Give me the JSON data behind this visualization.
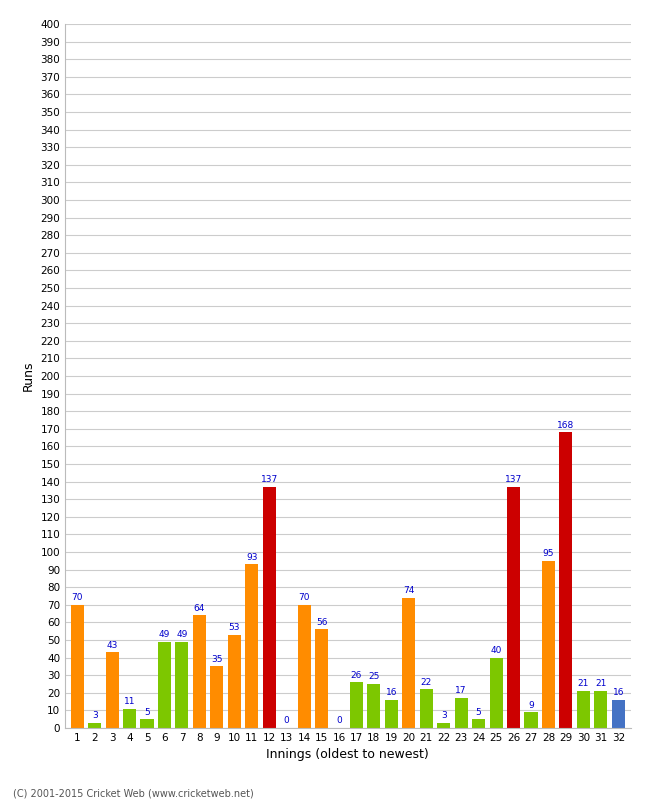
{
  "xlabel": "Innings (oldest to newest)",
  "ylabel": "Runs",
  "footnote": "(C) 2001-2015 Cricket Web (www.cricketweb.net)",
  "ylim": [
    0,
    400
  ],
  "innings": [
    1,
    2,
    3,
    4,
    5,
    6,
    7,
    8,
    9,
    10,
    11,
    12,
    13,
    14,
    15,
    16,
    17,
    18,
    19,
    20,
    21,
    22,
    23,
    24,
    25,
    26,
    27,
    28,
    29,
    30,
    31,
    32
  ],
  "values": [
    70,
    3,
    43,
    11,
    5,
    49,
    49,
    64,
    35,
    53,
    93,
    137,
    0,
    70,
    56,
    0,
    26,
    25,
    16,
    74,
    22,
    3,
    17,
    5,
    40,
    137,
    9,
    95,
    168,
    21,
    21,
    16
  ],
  "colors": [
    "#ff8c00",
    "#7dc700",
    "#ff8c00",
    "#7dc700",
    "#7dc700",
    "#7dc700",
    "#7dc700",
    "#ff8c00",
    "#ff8c00",
    "#ff8c00",
    "#ff8c00",
    "#cc0000",
    "#7dc700",
    "#ff8c00",
    "#ff8c00",
    "#7dc700",
    "#7dc700",
    "#7dc700",
    "#7dc700",
    "#ff8c00",
    "#7dc700",
    "#7dc700",
    "#7dc700",
    "#7dc700",
    "#7dc700",
    "#cc0000",
    "#7dc700",
    "#ff8c00",
    "#cc0000",
    "#7dc700",
    "#7dc700",
    "#4472c4"
  ],
  "label_color": "#0000cc",
  "background_color": "#ffffff",
  "grid_color": "#cccccc",
  "bar_width": 0.75,
  "label_fontsize": 6.5,
  "ytick_fontsize": 7.5,
  "xtick_fontsize": 7.5,
  "axis_label_fontsize": 9,
  "footnote_fontsize": 7
}
